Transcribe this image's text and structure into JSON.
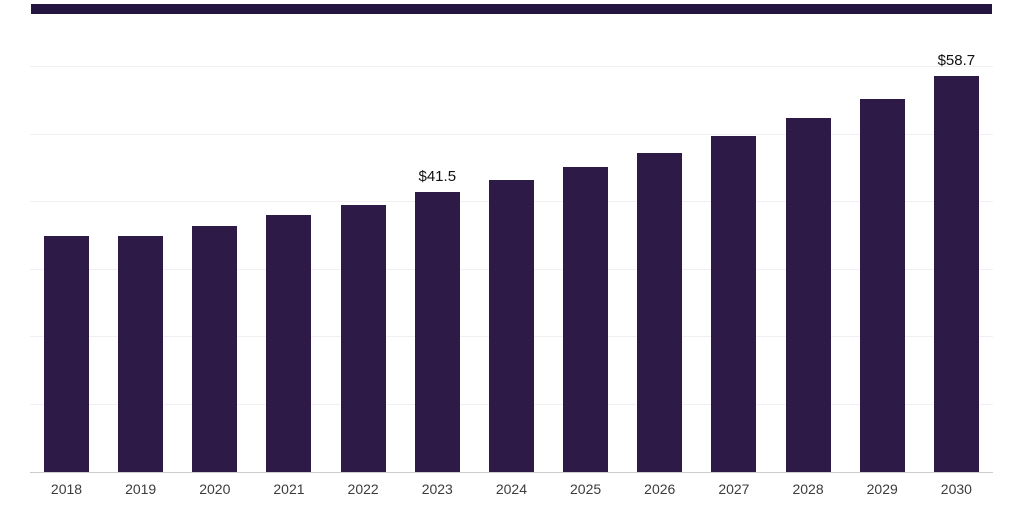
{
  "chart_data": {
    "type": "bar",
    "title": "",
    "xlabel": "",
    "ylabel": "",
    "categories": [
      "2018",
      "2019",
      "2020",
      "2021",
      "2022",
      "2023",
      "2024",
      "2025",
      "2026",
      "2027",
      "2028",
      "2029",
      "2030"
    ],
    "values": [
      34.9,
      35.0,
      36.5,
      38.1,
      39.6,
      41.5,
      43.3,
      45.2,
      47.3,
      49.8,
      52.4,
      55.3,
      58.7
    ],
    "value_labels": {
      "2023": "$41.5",
      "2030": "$58.7"
    },
    "ylim": [
      0,
      60
    ],
    "gridline_step": 10,
    "grid": "horizontal",
    "legend": "none",
    "bar_color": "#2e1a47",
    "accent_bar_color": "#241440",
    "axis_line_color": "#cccccc",
    "gridline_color": "#f1eff4"
  }
}
